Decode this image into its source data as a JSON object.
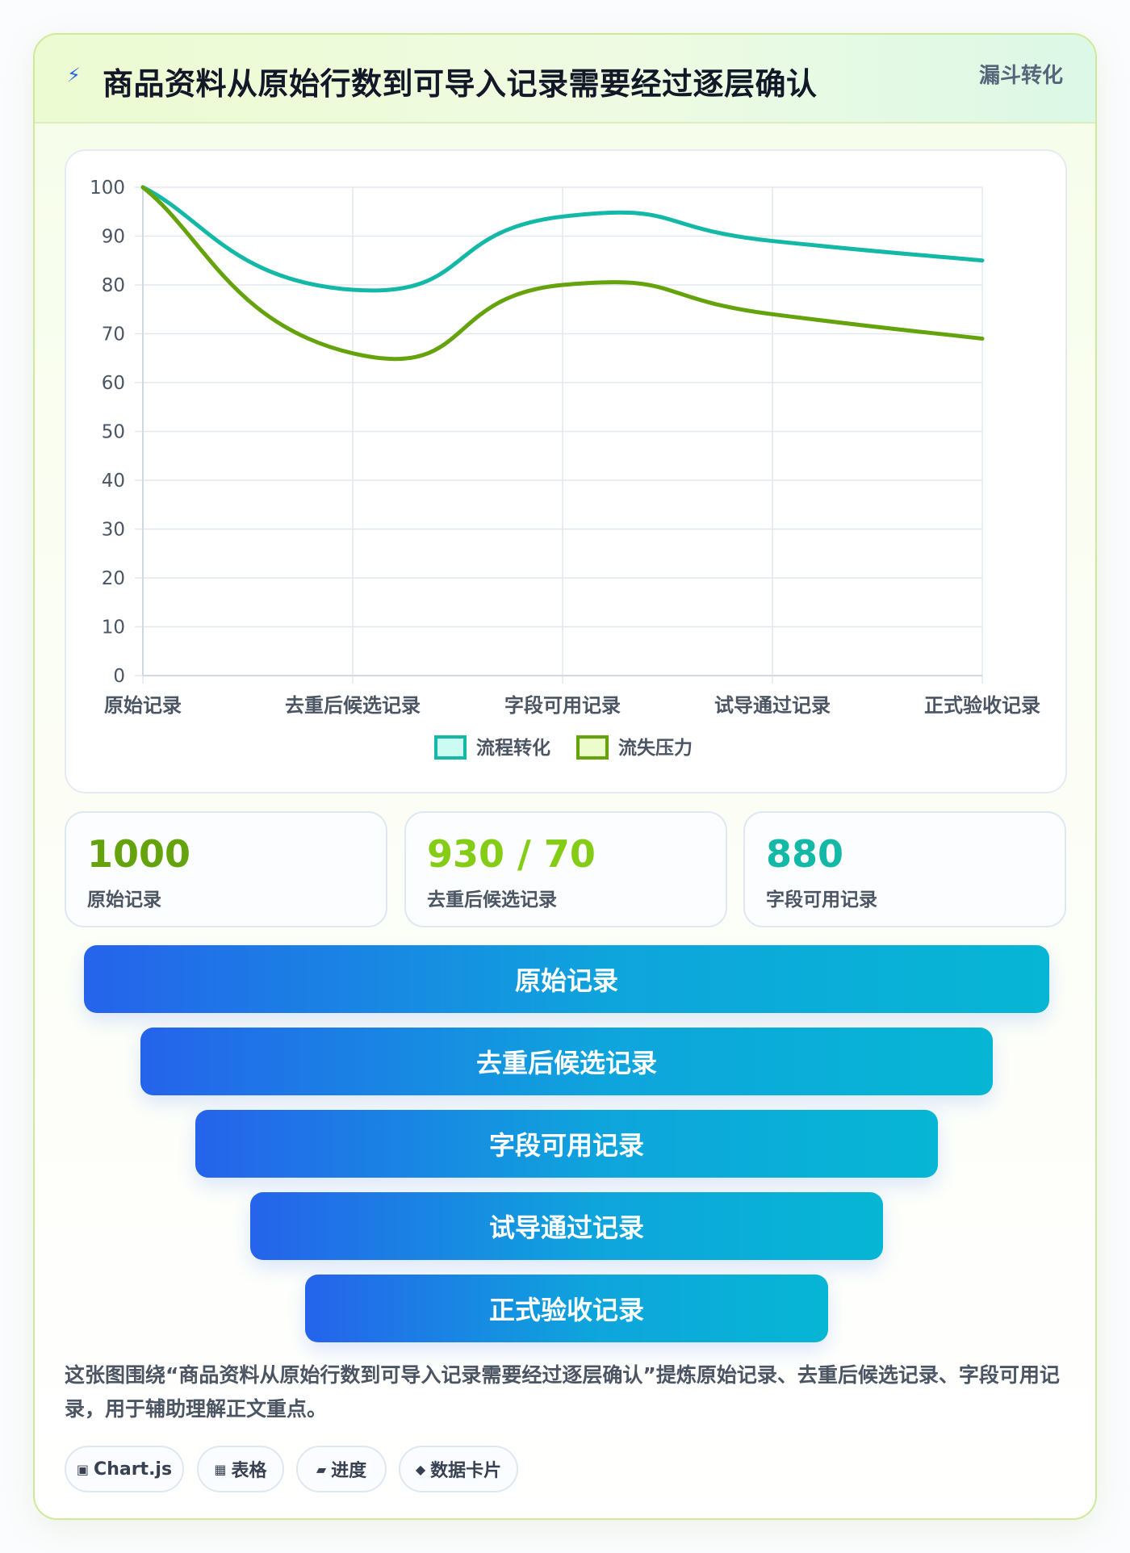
{
  "header": {
    "icon": "bolt-icon",
    "title": "商品资料从原始行数到可导入记录需要经过逐层确认",
    "tag": "漏斗转化"
  },
  "chart_data": {
    "type": "line",
    "categories": [
      "原始记录",
      "去重后候选记录",
      "字段可用记录",
      "试导通过记录",
      "正式验收记录"
    ],
    "ylim": [
      0,
      100
    ],
    "yticks": [
      0,
      10,
      20,
      30,
      40,
      50,
      60,
      70,
      80,
      90,
      100
    ],
    "grid": true,
    "legend": "bottom",
    "series": [
      {
        "name": "流程转化",
        "values": [
          100,
          79,
          94,
          89,
          85
        ],
        "color": "#14b8a6",
        "fill": "#ccfbf1"
      },
      {
        "name": "流失压力",
        "values": [
          100,
          66,
          80,
          74,
          69
        ],
        "color": "#65a30d",
        "fill": "#ecfccb"
      }
    ]
  },
  "stats": [
    {
      "value": "1000",
      "label": "原始记录",
      "color": "#65a30d"
    },
    {
      "value": "930 / 70",
      "label": "去重后候选记录",
      "color": "#84cc16"
    },
    {
      "value": "880",
      "label": "字段可用记录",
      "color": "#14b8a6"
    }
  ],
  "funnel": [
    {
      "label": "原始记录"
    },
    {
      "label": "去重后候选记录"
    },
    {
      "label": "字段可用记录"
    },
    {
      "label": "试导通过记录"
    },
    {
      "label": "正式验收记录"
    }
  ],
  "description": "这张图围绕“商品资料从原始行数到可导入记录需要经过逐层确认”提炼原始记录、去重后候选记录、字段可用记录，用于辅助理解正文重点。",
  "chips": [
    {
      "icon": "chart-icon",
      "glyph": "▣",
      "label": "Chart.js"
    },
    {
      "icon": "table-icon",
      "glyph": "▦",
      "label": "表格"
    },
    {
      "icon": "progress-icon",
      "glyph": "▰",
      "label": "进度"
    },
    {
      "icon": "data-card-icon",
      "glyph": "◆",
      "label": "数据卡片"
    }
  ]
}
